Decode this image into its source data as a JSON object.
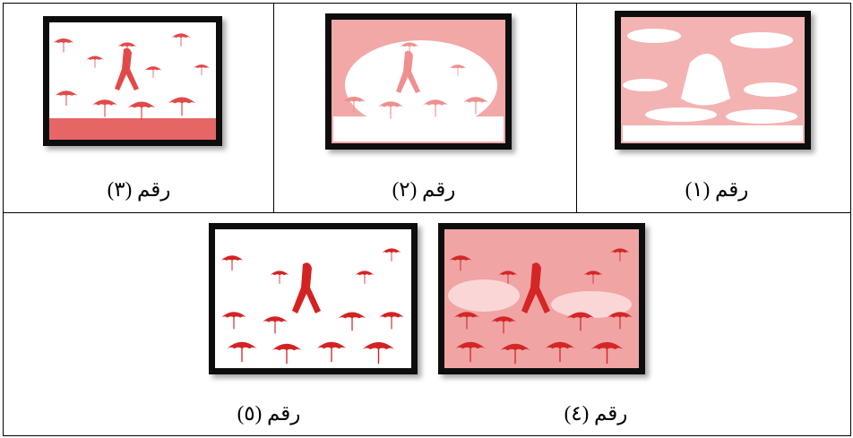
{
  "table": {
    "rows": [
      {
        "cells": [
          {
            "caption": "رقم (٣)"
          },
          {
            "caption": "رقم (٢)"
          },
          {
            "caption": "رقم (١)"
          }
        ]
      },
      {
        "cells": [
          {
            "caption": "رقم (٥)"
          },
          {
            "caption": "رقم (٤)"
          }
        ]
      }
    ]
  }
}
